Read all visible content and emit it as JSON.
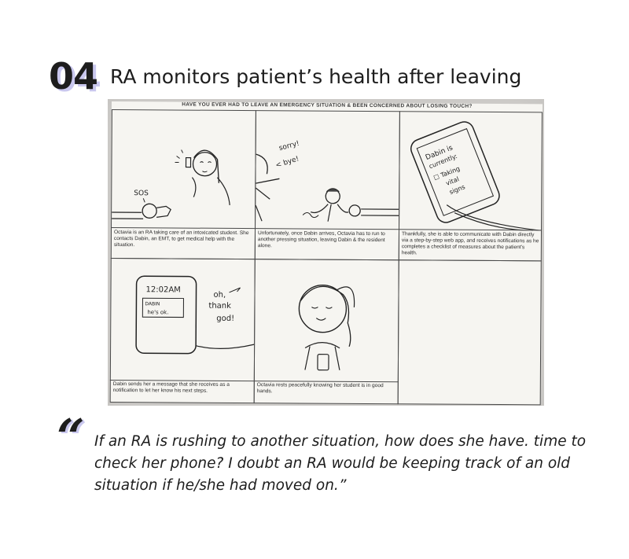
{
  "header": {
    "number": "04",
    "title": "RA monitors patient’s health after leaving"
  },
  "storyboard": {
    "sheet_heading": "HAVE YOU EVER HAD TO LEAVE AN EMERGENCY SITUATION & BEEN CONCERNED ABOUT LOSING TOUCH?",
    "panels": [
      {
        "caption": "Octavia is an RA taking care of an intoxicated student. She contacts Dabin, an EMT, to get medical help with the situation.",
        "sketch_text": [
          "SOS"
        ]
      },
      {
        "caption": "Unfortunately, once Dabin arrives, Octavia has to run to another pressing situation, leaving Dabin & the resident alone.",
        "sketch_text": [
          "sorry!",
          "< bye!"
        ]
      },
      {
        "caption": "Thankfully, she is able to communicate with Dabin directly via a step-by-step web app, and receives notifications as he completes a checklist of measures about the patient's health.",
        "sketch_text": [
          "Dabin is",
          "currently:",
          "☐ Taking",
          "vital",
          "signs"
        ]
      },
      {
        "caption": "Dabin sends her a message that she receives as a notification to let her know his next steps.",
        "sketch_text": [
          "12:02AM",
          "DABIN",
          "he's ok.",
          "oh,",
          "thank",
          "god!"
        ]
      },
      {
        "caption": "Octavia rests peacefully knowing her student is in good hands.",
        "sketch_text": []
      },
      {
        "caption": "",
        "sketch_text": []
      }
    ]
  },
  "quote": {
    "mark": "“",
    "text": "If an RA is rushing to another situation, how does she have. time to check her phone? I doubt an RA would be keeping track of an old situation if he/she had moved on.”"
  },
  "colors": {
    "accent_shadow": "#c9c7ee",
    "text": "#1d1d1d",
    "paper": "#f6f5f1"
  }
}
